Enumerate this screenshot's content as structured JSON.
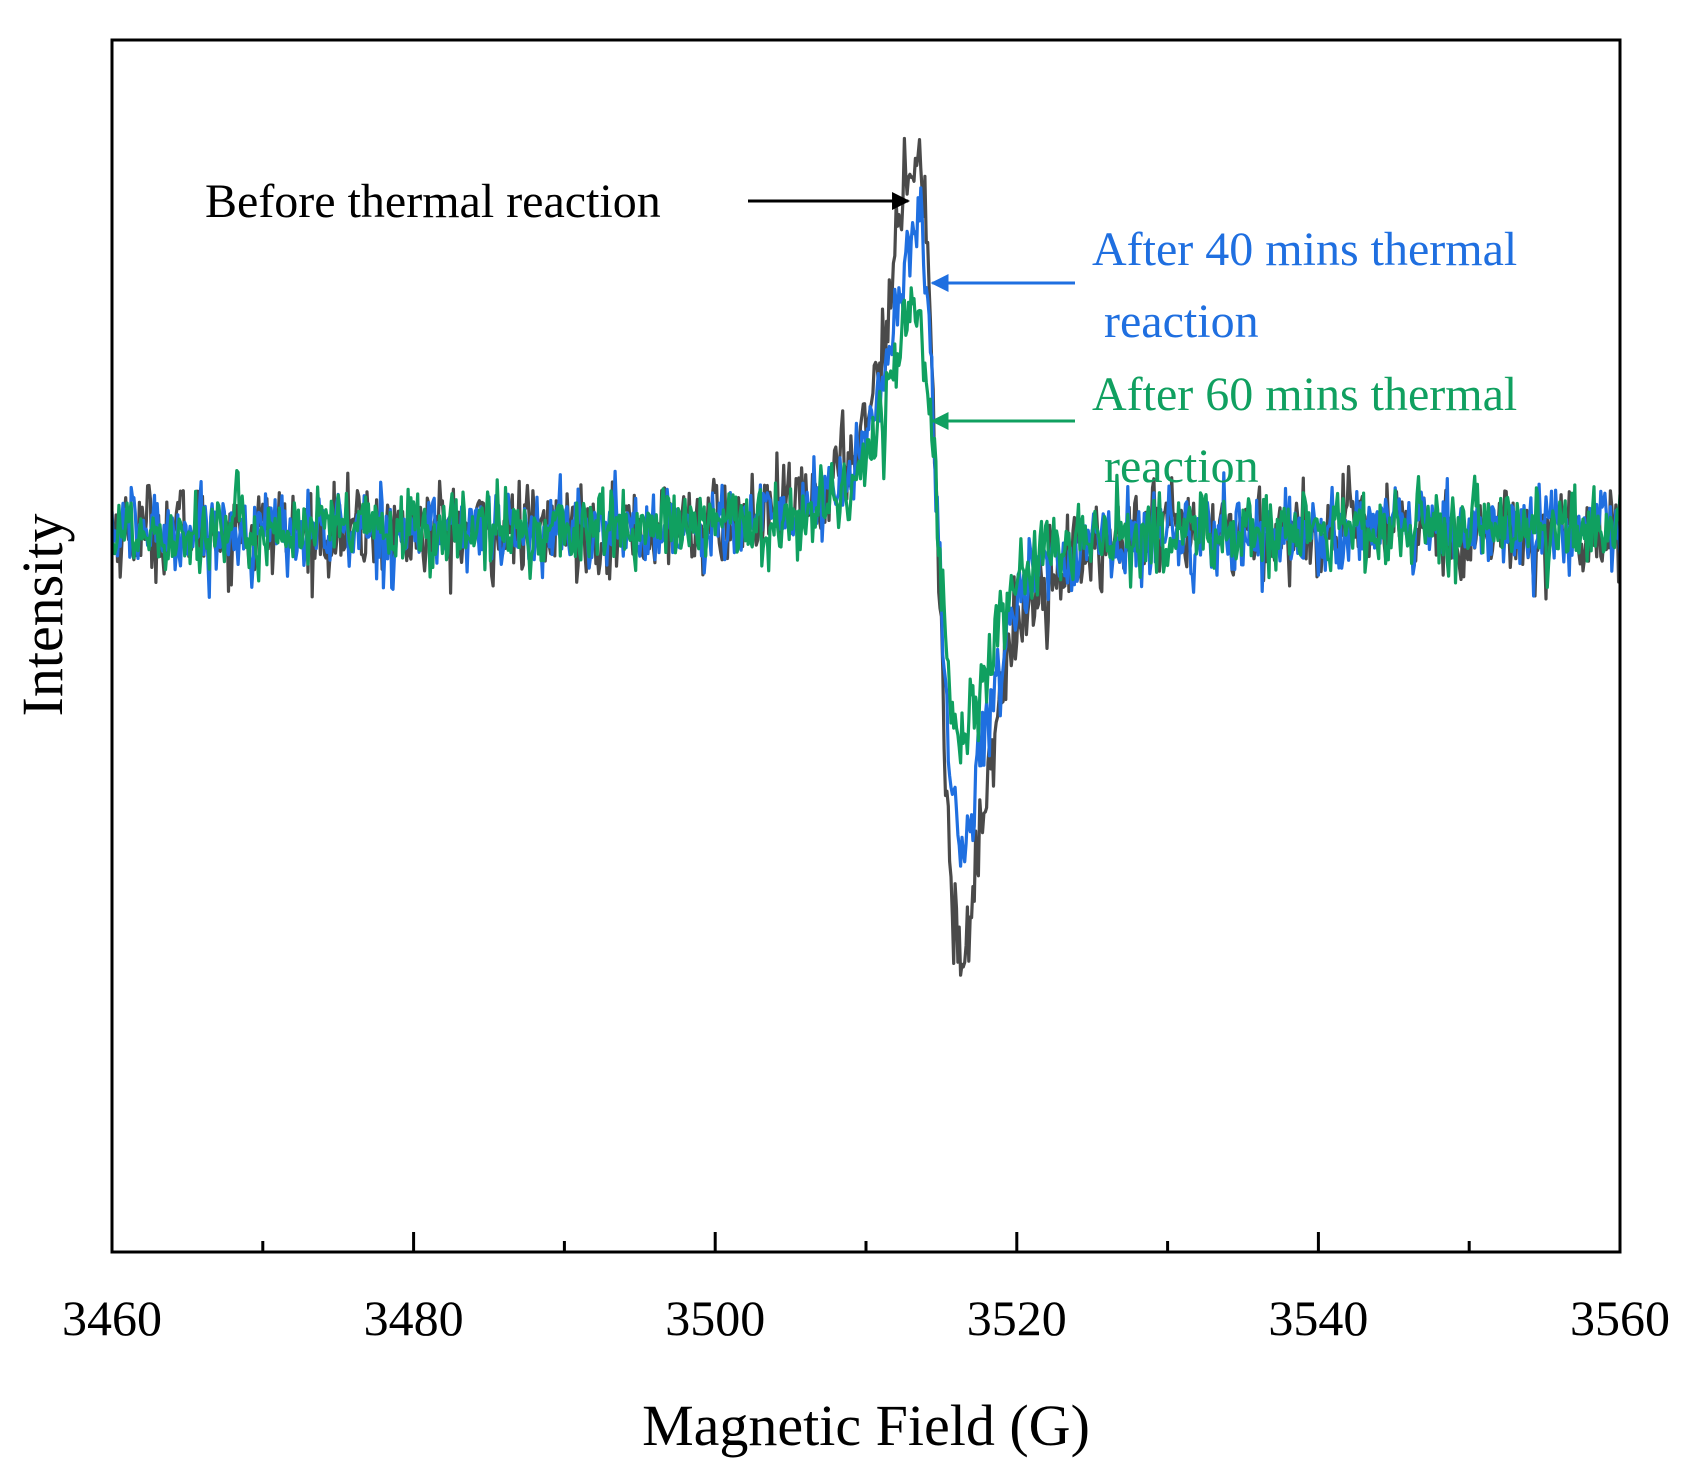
{
  "chart_data": {
    "type": "line",
    "title": "",
    "xlabel": "Magnetic Field (G)",
    "ylabel": "Intensity",
    "xlim": [
      3460,
      3560
    ],
    "ylim": [
      -1.25,
      0.85
    ],
    "x_ticks": [
      3460,
      3480,
      3500,
      3520,
      3540,
      3560
    ],
    "minor_x_ticks": [
      3470,
      3490,
      3510,
      3530,
      3550
    ],
    "y_tick_labels": false,
    "grid": false,
    "legend": "none",
    "series": [
      {
        "color": "#4a4a4a",
        "peak_field": 3513.3,
        "peak_intensity": 0.78,
        "trough_field": 3516.3,
        "trough_intensity": -0.85,
        "noise": 0.05
      },
      {
        "color": "#1f6fe0",
        "peak_field": 3513.3,
        "peak_intensity": 0.61,
        "trough_field": 3516.3,
        "trough_intensity": -0.62,
        "noise": 0.045
      },
      {
        "color": "#10a060",
        "peak_field": 3513.2,
        "peak_intensity": 0.46,
        "trough_field": 3516.3,
        "trough_intensity": -0.42,
        "noise": 0.045
      }
    ],
    "annotations": [
      {
        "lines": [
          "Before thermal reaction"
        ],
        "color": "#000000",
        "arrow_to_field": 3512.8,
        "arrow_to_intensity": 0.78,
        "arrow_direction": "right"
      },
      {
        "lines": [
          "After 40 mins thermal",
          "reaction"
        ],
        "color": "#1f6fe0",
        "arrow_to_field": 3514.4,
        "arrow_to_intensity": 0.6,
        "arrow_direction": "left"
      },
      {
        "lines": [
          "After 60 mins thermal",
          "reaction"
        ],
        "color": "#10a060",
        "arrow_to_field": 3514.4,
        "arrow_to_intensity": 0.38,
        "arrow_direction": "left"
      }
    ]
  }
}
